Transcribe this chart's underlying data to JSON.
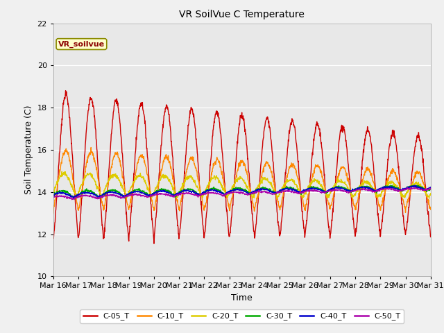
{
  "title": "VR SoilVue C Temperature",
  "xlabel": "Time",
  "ylabel": "Soil Temperature (C)",
  "ylim": [
    10,
    22
  ],
  "yticks": [
    10,
    12,
    14,
    16,
    18,
    20,
    22
  ],
  "date_labels": [
    "Mar 16",
    "Mar 17",
    "Mar 18",
    "Mar 19",
    "Mar 20",
    "Mar 21",
    "Mar 22",
    "Mar 23",
    "Mar 24",
    "Mar 25",
    "Mar 26",
    "Mar 27",
    "Mar 28",
    "Mar 29",
    "Mar 30",
    "Mar 31"
  ],
  "series_names": [
    "C-05_T",
    "C-10_T",
    "C-20_T",
    "C-30_T",
    "C-40_T",
    "C-50_T"
  ],
  "series_colors": [
    "#cc0000",
    "#ff8800",
    "#ddcc00",
    "#00aa00",
    "#0000cc",
    "#aa00aa"
  ],
  "linewidth": 1.0,
  "annotation_box": "VR_soilvue",
  "fig_bg_color": "#f0f0f0",
  "plot_bg_color": "#e8e8e8",
  "grid_color": "#ffffff"
}
